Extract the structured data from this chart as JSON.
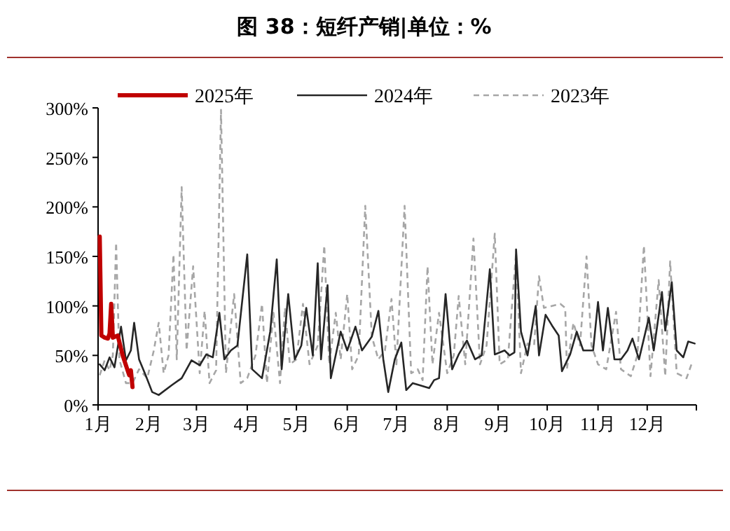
{
  "chart_data": {
    "type": "line",
    "title": "图 38：短纤产销|单位：%",
    "legend": "top",
    "marker": "none",
    "grid": false,
    "xlim": [
      "--01-01",
      "--12-31"
    ],
    "xticks": [
      {
        "value": "--01-01",
        "label": "1月"
      },
      {
        "value": "--02-01",
        "label": "2月"
      },
      {
        "value": "--03-01",
        "label": "3月"
      },
      {
        "value": "--04-01",
        "label": "4月"
      },
      {
        "value": "--05-01",
        "label": "5月"
      },
      {
        "value": "--06-01",
        "label": "6月"
      },
      {
        "value": "--07-01",
        "label": "7月"
      },
      {
        "value": "--08-01",
        "label": "8月"
      },
      {
        "value": "--09-01",
        "label": "9月"
      },
      {
        "value": "--10-01",
        "label": "10月"
      },
      {
        "value": "--11-01",
        "label": "11月"
      },
      {
        "value": "--12-01",
        "label": "12月"
      },
      {
        "value": "--12-31",
        "label": null
      }
    ],
    "ylim": [
      0,
      300
    ],
    "yticks": [
      {
        "value": 0,
        "label": "0%"
      },
      {
        "value": 50,
        "label": "50%"
      },
      {
        "value": 100,
        "label": "100%"
      },
      {
        "value": 150,
        "label": "150%"
      },
      {
        "value": 200,
        "label": "200%"
      },
      {
        "value": 250,
        "label": "250%"
      },
      {
        "value": 300,
        "label": "300%"
      }
    ],
    "series": [
      {
        "name": "2025年",
        "color": "#c00000",
        "line_style": "solid",
        "x": [
          "--01-02",
          "--01-03",
          "--01-05",
          "--01-07",
          "--01-08",
          "--01-09",
          "--01-10",
          "--01-13",
          "--01-16",
          "--01-18",
          "--01-20",
          "--01-21",
          "--01-22"
        ],
        "values": [
          170,
          70,
          68,
          67,
          72,
          102,
          68,
          70,
          50,
          40,
          30,
          35,
          18
        ]
      },
      {
        "name": "2024年",
        "color": "#262626",
        "line_style": "solid",
        "x": [
          "--01-02",
          "--01-05",
          "--01-08",
          "--01-11",
          "--01-15",
          "--01-18",
          "--01-21",
          "--01-23",
          "--01-26",
          "--01-30",
          "--02-03",
          "--02-07",
          "--02-15",
          "--02-21",
          "--02-27",
          "--03-03",
          "--03-07",
          "--03-11",
          "--03-15",
          "--03-18",
          "--03-22",
          "--03-26",
          "--04-01",
          "--04-04",
          "--04-10",
          "--04-15",
          "--04-19",
          "--04-22",
          "--04-26",
          "--04-30",
          "--05-04",
          "--05-07",
          "--05-11",
          "--05-14",
          "--05-16",
          "--05-20",
          "--05-22",
          "--05-28",
          "--06-01",
          "--06-06",
          "--06-10",
          "--06-16",
          "--06-20",
          "--06-23",
          "--06-26",
          "--06-30",
          "--07-04",
          "--07-07",
          "--07-11",
          "--07-15",
          "--07-21",
          "--07-24",
          "--07-27",
          "--07-31",
          "--08-04",
          "--08-08",
          "--08-13",
          "--08-18",
          "--08-22",
          "--08-27",
          "--08-30",
          "--09-05",
          "--09-08",
          "--09-11",
          "--09-12",
          "--09-15",
          "--09-19",
          "--09-24",
          "--09-26",
          "--09-30",
          "--10-04",
          "--10-08",
          "--10-10",
          "--10-15",
          "--10-19",
          "--10-23",
          "--10-29",
          "--11-01",
          "--11-04",
          "--11-07",
          "--11-11",
          "--11-15",
          "--11-19",
          "--11-22",
          "--11-26",
          "--12-02",
          "--12-05",
          "--12-10",
          "--12-12",
          "--12-16",
          "--12-19",
          "--12-23",
          "--12-26",
          "--12-30"
        ],
        "values": [
          41,
          35,
          48,
          38,
          79,
          45,
          55,
          83,
          46,
          30,
          13,
          10,
          20,
          27,
          45,
          40,
          51,
          48,
          93,
          46,
          55,
          60,
          152,
          36,
          27,
          74,
          147,
          36,
          112,
          46,
          60,
          98,
          50,
          143,
          46,
          121,
          27,
          74,
          55,
          79,
          55,
          69,
          95,
          46,
          13,
          46,
          63,
          15,
          22,
          20,
          17,
          25,
          27,
          112,
          36,
          51,
          65,
          46,
          50,
          137,
          51,
          55,
          50,
          53,
          157,
          74,
          50,
          100,
          50,
          91,
          80,
          70,
          34,
          51,
          74,
          55,
          55,
          104,
          55,
          98,
          46,
          46,
          55,
          67,
          46,
          88,
          55,
          114,
          75,
          124,
          55,
          48,
          64,
          62
        ]
      },
      {
        "name": "2023年",
        "color": "#a6a6a6",
        "line_style": "dashed",
        "x": [
          "--01-02",
          "--01-05",
          "--01-08",
          "--01-10",
          "--01-12",
          "--01-14",
          "--01-18",
          "--01-22",
          "--01-26",
          "--01-31",
          "--02-04",
          "--02-07",
          "--02-10",
          "--02-13",
          "--02-16",
          "--02-18",
          "--02-21",
          "--02-24",
          "--02-28",
          "--03-03",
          "--03-06",
          "--03-09",
          "--03-13",
          "--03-16",
          "--03-19",
          "--03-24",
          "--03-28",
          "--04-01",
          "--04-06",
          "--04-10",
          "--04-13",
          "--04-17",
          "--04-21",
          "--04-24",
          "--04-27",
          "--05-01",
          "--05-05",
          "--05-09",
          "--05-14",
          "--05-18",
          "--05-21",
          "--05-25",
          "--05-28",
          "--06-01",
          "--06-04",
          "--06-08",
          "--06-12",
          "--06-16",
          "--06-20",
          "--06-24",
          "--06-28",
          "--07-01",
          "--07-06",
          "--07-10",
          "--07-14",
          "--07-17",
          "--07-20",
          "--07-23",
          "--07-27",
          "--08-01",
          "--08-05",
          "--08-08",
          "--08-12",
          "--08-17",
          "--08-21",
          "--08-25",
          "--08-30",
          "--09-02",
          "--09-07",
          "--09-12",
          "--09-15",
          "--09-19",
          "--09-23",
          "--09-26",
          "--09-29",
          "--10-09",
          "--10-12",
          "--10-13",
          "--10-17",
          "--10-21",
          "--10-25",
          "--10-28",
          "--11-01",
          "--11-06",
          "--11-12",
          "--11-15",
          "--11-21",
          "--11-25",
          "--11-29",
          "--12-03",
          "--12-08",
          "--12-12",
          "--12-15",
          "--12-19",
          "--12-25",
          "--12-28"
        ],
        "values": [
          30,
          45,
          35,
          50,
          164,
          46,
          22,
          22,
          36,
          27,
          55,
          83,
          32,
          50,
          152,
          46,
          220,
          55,
          140,
          32,
          95,
          22,
          35,
          298,
          32,
          112,
          22,
          27,
          50,
          102,
          22,
          93,
          22,
          98,
          41,
          46,
          102,
          41,
          60,
          161,
          41,
          93,
          46,
          112,
          36,
          50,
          201,
          69,
          46,
          55,
          107,
          41,
          201,
          32,
          36,
          25,
          140,
          41,
          93,
          32,
          50,
          110,
          41,
          168,
          41,
          60,
          173,
          41,
          46,
          154,
          32,
          62,
          60,
          130,
          98,
          102,
          98,
          36,
          83,
          60,
          150,
          60,
          41,
          36,
          94,
          36,
          29,
          50,
          161,
          29,
          126,
          29,
          145,
          32,
          27,
          41
        ]
      }
    ]
  }
}
